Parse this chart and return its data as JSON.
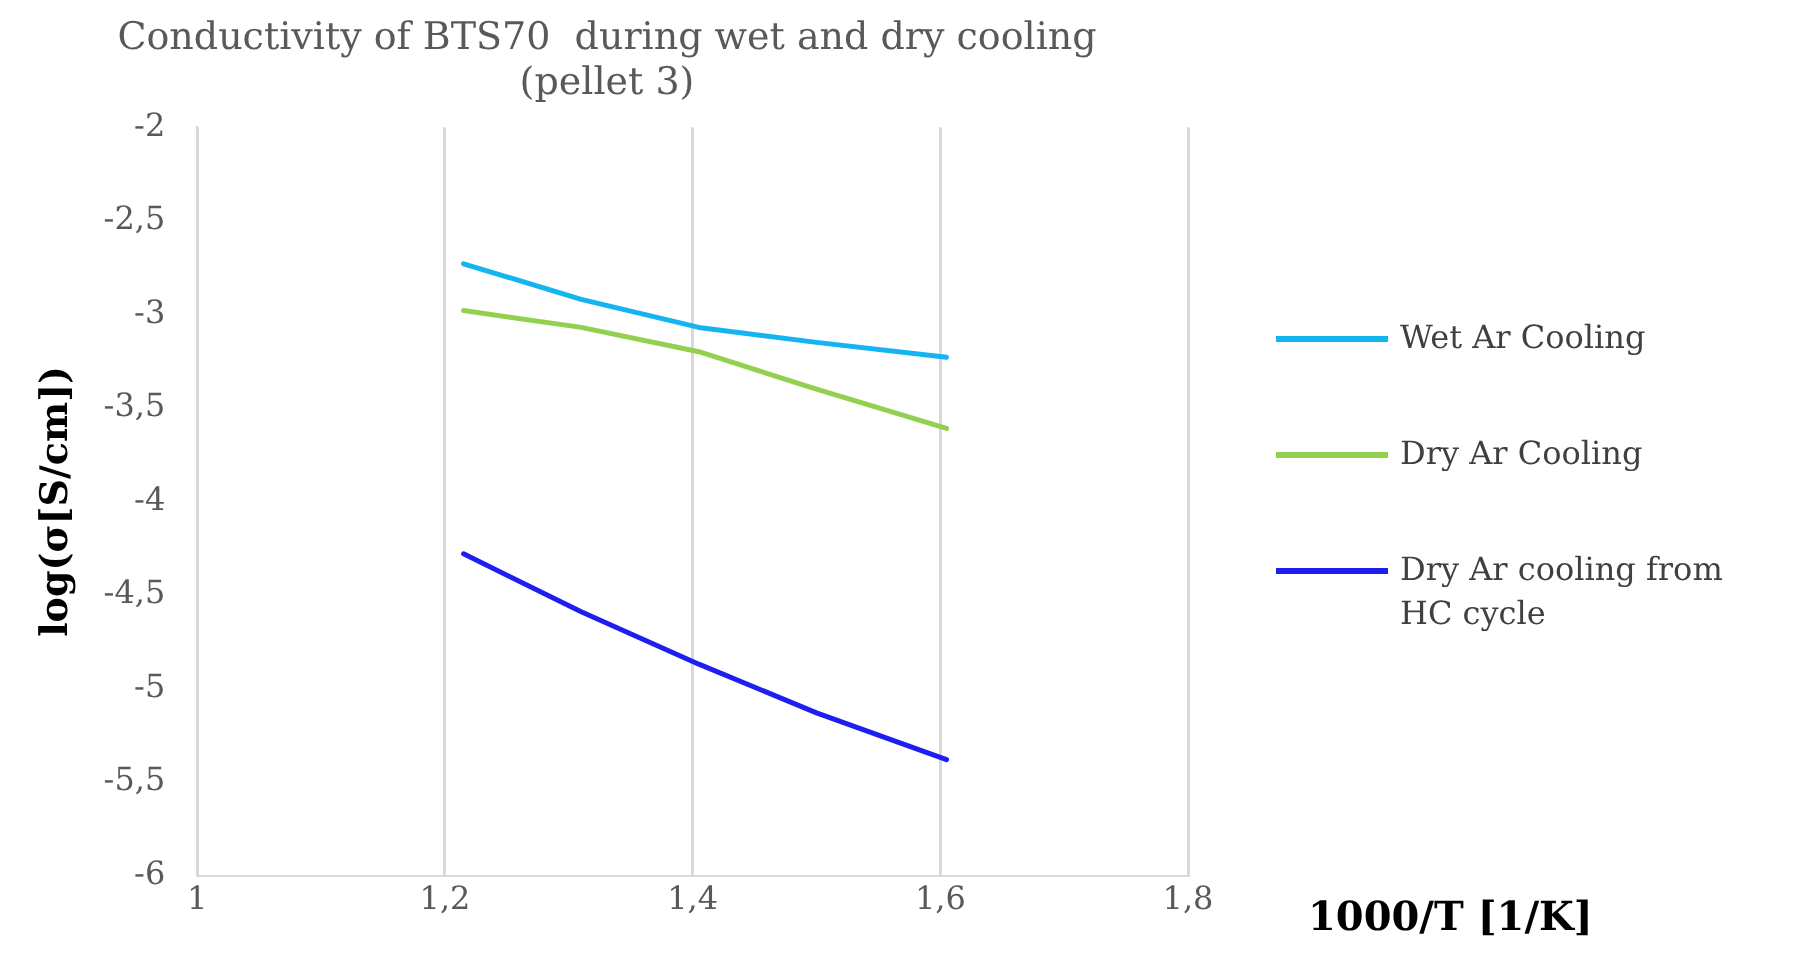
{
  "chart_data": {
    "type": "line",
    "title": "Conductivity of BTS70  during wet and dry cooling\n(pellet 3)",
    "xlabel": "1000/T [1/K]",
    "ylabel": "log(σ[S/cm])",
    "x": [
      1.215,
      1.31,
      1.405,
      1.5,
      1.605
    ],
    "series": [
      {
        "name": "Wet Ar Cooling",
        "color": "#14b4f0",
        "values": [
          -2.73,
          -2.92,
          -3.07,
          -3.15,
          -3.23
        ]
      },
      {
        "name": "Dry Ar Cooling",
        "color": "#92d050",
        "values": [
          -2.98,
          -3.07,
          -3.2,
          -3.4,
          -3.61
        ]
      },
      {
        "name": "Dry Ar cooling from HC cycle",
        "color": "#1e1ef0",
        "values": [
          -4.28,
          -4.59,
          -4.87,
          -5.13,
          -5.38
        ]
      }
    ],
    "xlim": [
      1,
      1.8
    ],
    "xticks": [
      {
        "value": 1,
        "label": "1"
      },
      {
        "value": 1.2,
        "label": "1,2"
      },
      {
        "value": 1.4,
        "label": "1,4"
      },
      {
        "value": 1.6,
        "label": "1,6"
      },
      {
        "value": 1.8,
        "label": "1,8"
      }
    ],
    "ylim": [
      -6,
      -2
    ],
    "yticks": [
      {
        "value": -6,
        "label": "-6"
      },
      {
        "value": -5.5,
        "label": "-5,5"
      },
      {
        "value": -5,
        "label": "-5"
      },
      {
        "value": -4.5,
        "label": "-4,5"
      },
      {
        "value": -4,
        "label": "-4"
      },
      {
        "value": -3.5,
        "label": "-3,5"
      },
      {
        "value": -3,
        "label": "-3"
      },
      {
        "value": -2.5,
        "label": "-2,5"
      },
      {
        "value": -2,
        "label": "-2"
      }
    ],
    "grid": "x",
    "legend": "right",
    "marker": "none",
    "line_style": "solid"
  }
}
